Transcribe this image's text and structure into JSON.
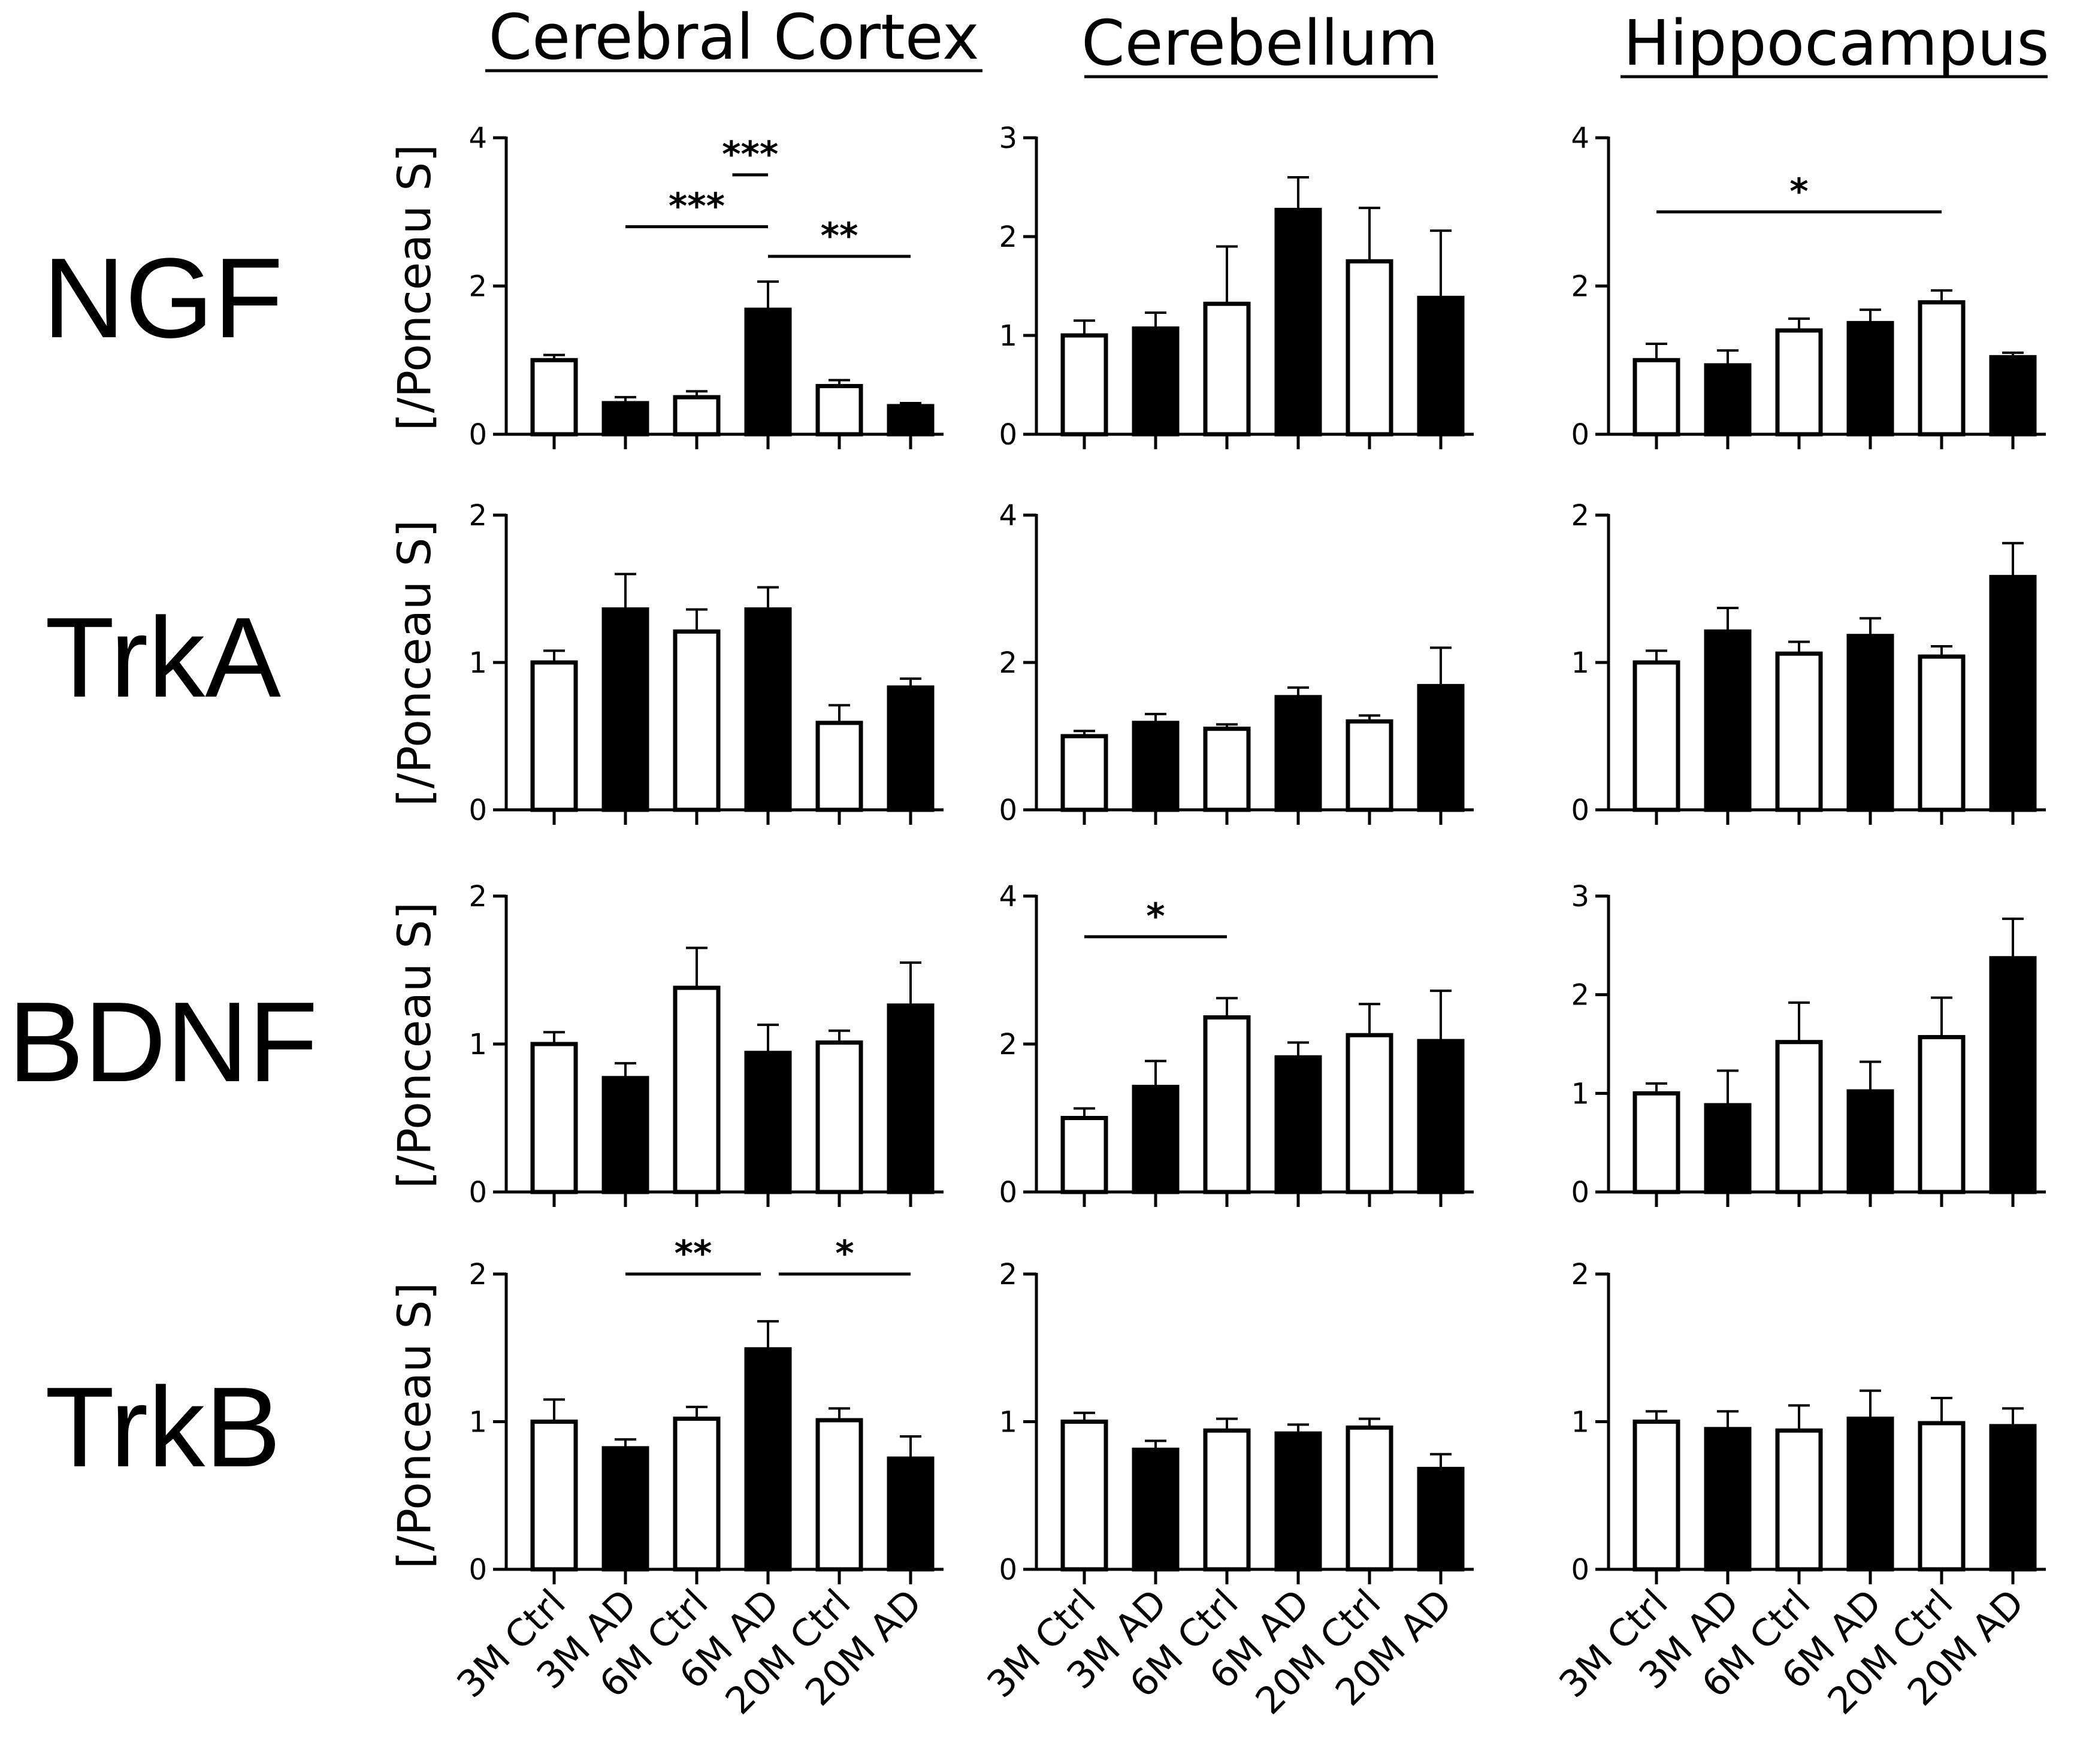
{
  "column_titles": [
    "Cerebral Cortex",
    "Cerebellum",
    "Hippocampus"
  ],
  "row_labels": [
    "NGF",
    "TrkA",
    "BDNF",
    "TrkB"
  ],
  "y_axis_title": "[/Ponceau S]",
  "groups": [
    "3M Ctrl",
    "3M AD",
    "6M Ctrl",
    "6M AD",
    "20M Ctrl",
    "20M AD"
  ],
  "bar_fills": [
    "open",
    "filled",
    "open",
    "filled",
    "open",
    "filled"
  ],
  "colors": {
    "open": "#ffffff",
    "filled": "#000000",
    "stroke": "#000000"
  },
  "chart_data": [
    {
      "type": "bar",
      "row": "NGF",
      "region": "Cerebral Cortex",
      "ylim": [
        0,
        4
      ],
      "yticks": [
        0,
        2,
        4
      ],
      "values": [
        1.0,
        0.42,
        0.5,
        1.68,
        0.65,
        0.38
      ],
      "errors": [
        0.07,
        0.08,
        0.08,
        0.38,
        0.08,
        0.04
      ],
      "significance": [
        {
          "from": 1,
          "to": 3,
          "label": "***",
          "y": 2.8
        },
        {
          "from": 2.5,
          "to": 3,
          "label": "***",
          "y": 3.5
        },
        {
          "from": 3,
          "to": 5,
          "label": "**",
          "y": 2.4
        }
      ]
    },
    {
      "type": "bar",
      "row": "NGF",
      "region": "Cerebellum",
      "ylim": [
        0,
        3
      ],
      "yticks": [
        0,
        1,
        2,
        3
      ],
      "values": [
        1.0,
        1.07,
        1.32,
        2.27,
        1.75,
        1.38
      ],
      "errors": [
        0.15,
        0.16,
        0.58,
        0.33,
        0.54,
        0.68
      ],
      "significance": []
    },
    {
      "type": "bar",
      "row": "NGF",
      "region": "Hippocampus",
      "ylim": [
        0,
        4
      ],
      "yticks": [
        0,
        2,
        4
      ],
      "values": [
        1.0,
        0.93,
        1.4,
        1.5,
        1.78,
        1.04
      ],
      "errors": [
        0.22,
        0.2,
        0.16,
        0.18,
        0.16,
        0.06
      ],
      "significance": [
        {
          "from": 0,
          "to": 4,
          "label": "*",
          "y": 3.0
        }
      ]
    },
    {
      "type": "bar",
      "row": "TrkA",
      "region": "Cerebral Cortex",
      "ylim": [
        0,
        2
      ],
      "yticks": [
        0,
        1,
        2
      ],
      "values": [
        1.0,
        1.36,
        1.21,
        1.36,
        0.59,
        0.83
      ],
      "errors": [
        0.08,
        0.24,
        0.15,
        0.15,
        0.12,
        0.06
      ],
      "significance": []
    },
    {
      "type": "bar",
      "row": "TrkA",
      "region": "Cerebellum",
      "ylim": [
        0,
        4
      ],
      "yticks": [
        0,
        2,
        4
      ],
      "values": [
        1.0,
        1.18,
        1.1,
        1.53,
        1.2,
        1.68
      ],
      "errors": [
        0.07,
        0.12,
        0.06,
        0.13,
        0.08,
        0.52
      ],
      "significance": []
    },
    {
      "type": "bar",
      "row": "TrkA",
      "region": "Hippocampus",
      "ylim": [
        0,
        2
      ],
      "yticks": [
        0,
        1,
        2
      ],
      "values": [
        1.0,
        1.21,
        1.06,
        1.18,
        1.04,
        1.58
      ],
      "errors": [
        0.08,
        0.16,
        0.08,
        0.12,
        0.07,
        0.23
      ],
      "significance": []
    },
    {
      "type": "bar",
      "row": "BDNF",
      "region": "Cerebral Cortex",
      "ylim": [
        0,
        2
      ],
      "yticks": [
        0,
        1,
        2
      ],
      "values": [
        1.0,
        0.77,
        1.38,
        0.94,
        1.01,
        1.26
      ],
      "errors": [
        0.08,
        0.1,
        0.27,
        0.19,
        0.08,
        0.29
      ],
      "significance": []
    },
    {
      "type": "bar",
      "row": "BDNF",
      "region": "Cerebellum",
      "ylim": [
        0,
        4
      ],
      "yticks": [
        0,
        2,
        4
      ],
      "values": [
        1.0,
        1.42,
        2.36,
        1.82,
        2.12,
        2.04
      ],
      "errors": [
        0.13,
        0.35,
        0.26,
        0.2,
        0.42,
        0.68
      ],
      "significance": [
        {
          "from": 0,
          "to": 2,
          "label": "*",
          "y": 3.45
        }
      ]
    },
    {
      "type": "bar",
      "row": "BDNF",
      "region": "Hippocampus",
      "ylim": [
        0,
        3
      ],
      "yticks": [
        0,
        1,
        2,
        3
      ],
      "values": [
        1.0,
        0.88,
        1.52,
        1.02,
        1.57,
        2.37
      ],
      "errors": [
        0.1,
        0.35,
        0.4,
        0.3,
        0.4,
        0.4
      ],
      "significance": []
    },
    {
      "type": "bar",
      "row": "TrkB",
      "region": "Cerebral Cortex",
      "ylim": [
        0,
        2
      ],
      "yticks": [
        0,
        1,
        2
      ],
      "values": [
        1.0,
        0.82,
        1.02,
        1.49,
        1.01,
        0.75
      ],
      "errors": [
        0.15,
        0.06,
        0.08,
        0.19,
        0.08,
        0.15
      ],
      "significance": [
        {
          "from": 1,
          "to": 2.9,
          "label": "**",
          "y": 2.0
        },
        {
          "from": 3.15,
          "to": 5,
          "label": "*",
          "y": 2.0
        }
      ]
    },
    {
      "type": "bar",
      "row": "TrkB",
      "region": "Cerebellum",
      "ylim": [
        0,
        2
      ],
      "yticks": [
        0,
        1,
        2
      ],
      "values": [
        1.0,
        0.81,
        0.94,
        0.92,
        0.96,
        0.68
      ],
      "errors": [
        0.06,
        0.06,
        0.08,
        0.06,
        0.06,
        0.1
      ],
      "significance": []
    },
    {
      "type": "bar",
      "row": "TrkB",
      "region": "Hippocampus",
      "ylim": [
        0,
        2
      ],
      "yticks": [
        0,
        1,
        2
      ],
      "values": [
        1.0,
        0.95,
        0.94,
        1.02,
        0.99,
        0.97
      ],
      "errors": [
        0.07,
        0.12,
        0.17,
        0.19,
        0.17,
        0.12
      ],
      "significance": []
    }
  ]
}
